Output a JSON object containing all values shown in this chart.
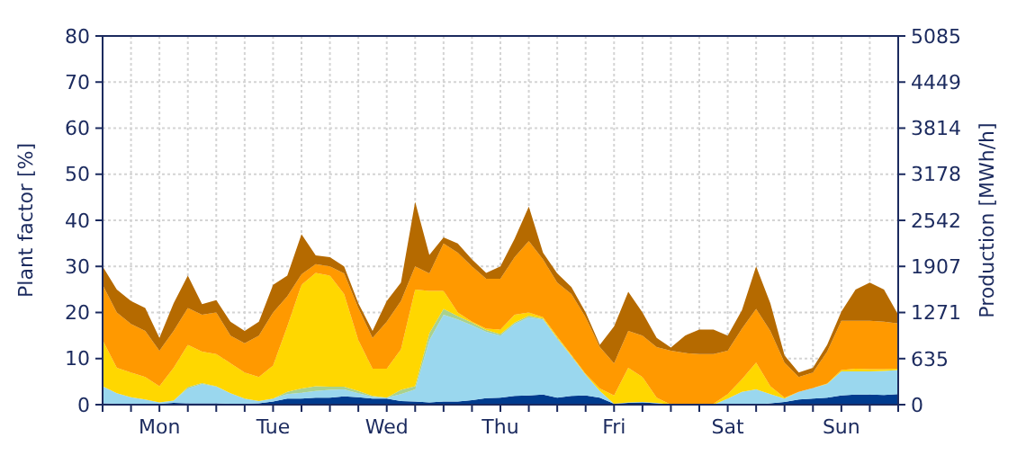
{
  "chart_data": {
    "type": "area",
    "stacked": true,
    "ylabel": "Plant factor [%]",
    "y2label": "Production [MWh/h]",
    "categories": [
      null,
      null,
      null,
      null,
      "Mon",
      null,
      null,
      null,
      null,
      null,
      null,
      null,
      "Tue",
      null,
      null,
      null,
      null,
      null,
      null,
      null,
      "Wed",
      null,
      null,
      null,
      null,
      null,
      null,
      null,
      "Thu",
      null,
      null,
      null,
      null,
      null,
      null,
      null,
      "Fri",
      null,
      null,
      null,
      null,
      null,
      null,
      null,
      "Sat",
      null,
      null,
      null,
      null,
      null,
      null,
      null,
      "Sun",
      null,
      null,
      null,
      null
    ],
    "ylim": [
      0,
      80
    ],
    "yticks": [
      0,
      10,
      20,
      30,
      40,
      50,
      60,
      70,
      80
    ],
    "y2lim": [
      0,
      5085
    ],
    "y2ticks": [
      0,
      635,
      1271,
      1907,
      2542,
      3178,
      3814,
      4449,
      5085
    ],
    "grid": true,
    "series": [
      {
        "color": "#003b8e",
        "values": [
          0.3,
          0.2,
          0.2,
          0.2,
          0.2,
          0.4,
          0.3,
          0.3,
          0.3,
          0.2,
          0.2,
          0.3,
          0.7,
          1.3,
          1.3,
          1.5,
          1.5,
          1.8,
          1.6,
          1.3,
          1.3,
          0.8,
          0.7,
          0.5,
          0.7,
          0.7,
          1,
          1.4,
          1.5,
          1.9,
          2,
          2.2,
          1.5,
          1.9,
          2,
          1.5,
          0.2,
          0.4,
          0.5,
          0.3,
          0,
          0,
          0,
          0,
          0,
          0,
          0,
          0.3,
          0.6,
          1.1,
          1.3,
          1.5,
          2,
          2.2,
          2.2,
          2.1,
          2.3
        ]
      },
      {
        "color": "#9ad7ee",
        "values": [
          3.7,
          2.3,
          1.4,
          0.9,
          0.3,
          0.5,
          3.2,
          4.2,
          3.6,
          2.3,
          1.1,
          0.5,
          0.6,
          1,
          1.3,
          1.5,
          1.7,
          1.5,
          0.9,
          0.4,
          0.2,
          1.5,
          2.6,
          13.5,
          18.8,
          17.8,
          16.2,
          14.4,
          13.5,
          15.6,
          17,
          16.3,
          12.8,
          8.6,
          4.5,
          1.5,
          0,
          0.1,
          0.1,
          0.1,
          0,
          0,
          0,
          0,
          1.3,
          2.8,
          3.3,
          2,
          0.7,
          1.7,
          2.3,
          3,
          5.2,
          5,
          5,
          5.2,
          5.2
        ]
      },
      {
        "color": "#a9d18e",
        "values": [
          0,
          0,
          0,
          0,
          0,
          0,
          0.3,
          0.2,
          0.1,
          0,
          0,
          0,
          0,
          0.5,
          0.9,
          1,
          0.7,
          0.6,
          0.5,
          0.2,
          0,
          0.9,
          0.7,
          1.5,
          1.3,
          0.7,
          0.6,
          0.4,
          0.3,
          0.3,
          0.3,
          0.2,
          0.2,
          0.1,
          0,
          0,
          0,
          0,
          0,
          0,
          0,
          0,
          0,
          0,
          0,
          0,
          0,
          0,
          0,
          0,
          0,
          0,
          0,
          0,
          0,
          0,
          0
        ]
      },
      {
        "color": "#ffd700",
        "values": [
          10,
          5.5,
          5.4,
          4.9,
          3.5,
          7.1,
          9.2,
          6.8,
          7,
          6.5,
          5.7,
          5.2,
          7.2,
          14.2,
          22.5,
          24.6,
          24.1,
          20.1,
          11,
          5.9,
          6.3,
          8.8,
          21,
          9.2,
          3.9,
          0.8,
          0.2,
          0.3,
          1,
          1.7,
          0.7,
          0.3,
          0.3,
          0.2,
          0.2,
          0.5,
          1.8,
          7.5,
          5.4,
          1.1,
          0,
          0.2,
          0.2,
          0.2,
          1,
          2.7,
          5.8,
          1.7,
          0.2,
          0,
          0,
          0.1,
          0.3,
          0.6,
          0.5,
          0.4,
          0.3
        ]
      },
      {
        "color": "#ff9900",
        "values": [
          12,
          12,
          10.5,
          10,
          7.7,
          8,
          8,
          8,
          9,
          6,
          6.3,
          9,
          11.5,
          6.5,
          2.3,
          1.9,
          2,
          4.5,
          7,
          6.7,
          10.2,
          10.5,
          5,
          3.8,
          10.3,
          13,
          12,
          10.8,
          11,
          12.5,
          15.5,
          12.5,
          11.7,
          13.2,
          12.3,
          9,
          7,
          8,
          9,
          11,
          11.7,
          11,
          10.8,
          10.8,
          9.4,
          11,
          11.7,
          12,
          7.6,
          3.2,
          3.4,
          6.9,
          10.7,
          10.4,
          10.5,
          10.3,
          9.8
        ]
      },
      {
        "color": "#b56a00",
        "values": [
          4,
          5,
          5,
          5,
          2.8,
          6,
          7,
          2.3,
          2.7,
          3,
          2.7,
          3,
          6,
          4.5,
          8.7,
          1.9,
          2,
          1.5,
          1,
          1.5,
          4.5,
          4,
          14,
          4,
          1.3,
          2,
          1.5,
          1.3,
          2.7,
          4,
          7.5,
          1.5,
          2,
          1.5,
          1,
          0.5,
          8,
          8.5,
          5,
          2,
          0.7,
          3.8,
          5.3,
          5.3,
          3.3,
          4,
          9.2,
          6,
          1.6,
          1,
          1,
          1.5,
          2,
          6.8,
          8.3,
          7,
          1.9
        ]
      }
    ]
  }
}
